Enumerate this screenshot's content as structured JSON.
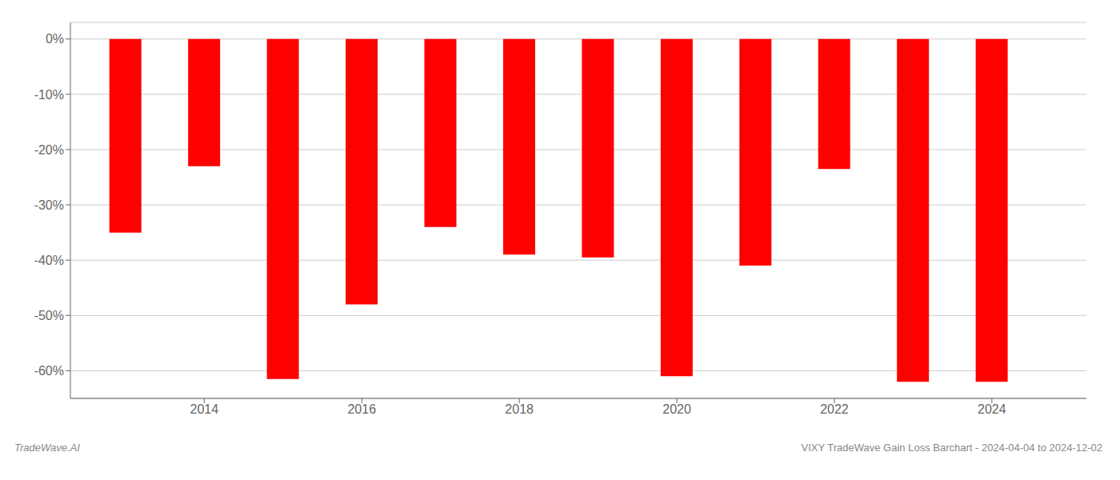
{
  "chart_data": {
    "type": "bar",
    "x": [
      2013,
      2014,
      2015,
      2016,
      2017,
      2018,
      2019,
      2020,
      2021,
      2022,
      2023,
      2024
    ],
    "values": [
      -35.0,
      -23.0,
      -61.5,
      -48.0,
      -34.0,
      -39.0,
      -39.5,
      -61.0,
      -41.0,
      -23.5,
      -62.0,
      -62.0
    ],
    "color": "#ff0000",
    "xlim": [
      2012.3,
      2025.2
    ],
    "xticks": [
      2014,
      2016,
      2018,
      2020,
      2022,
      2024
    ],
    "ylim": [
      -65,
      3
    ],
    "yticks": [
      {
        "value": 0,
        "label": "0%"
      },
      {
        "value": -10,
        "label": "-10%"
      },
      {
        "value": -20,
        "label": "-20%"
      },
      {
        "value": -30,
        "label": "-30%"
      },
      {
        "value": -40,
        "label": "-40%"
      },
      {
        "value": -50,
        "label": "-50%"
      },
      {
        "value": -60,
        "label": "-60%"
      }
    ],
    "grid": true,
    "annotations": [
      "TradeWave.AI",
      "VIXY TradeWave Gain Loss Barchart - 2024-04-04 to 2024-12-02"
    ]
  }
}
